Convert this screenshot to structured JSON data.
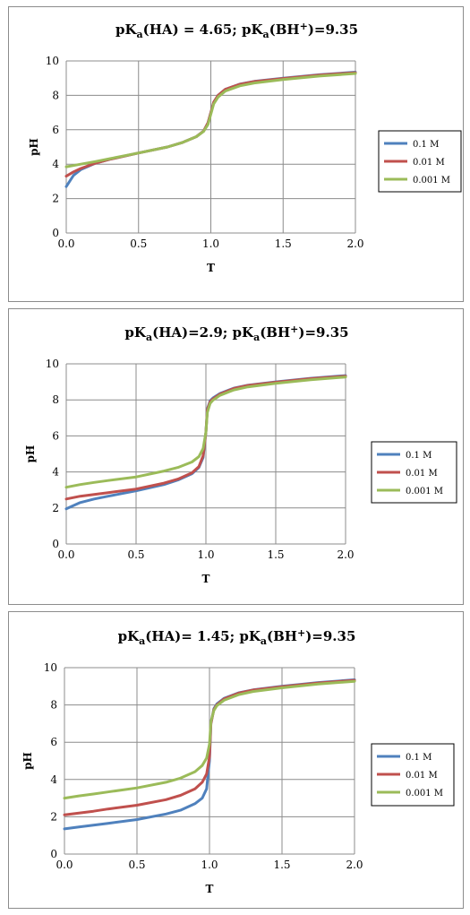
{
  "chart_data": [
    {
      "type": "line",
      "title": "pKa(HA) = 4.65; pKa(BH+)=9.35",
      "title_parts": {
        "a": "pK",
        "sub1": "a",
        "b": "(HA) = 4.65; pK",
        "sub2": "a",
        "c": "(BH",
        "sup": "+",
        "d": ")=9.35"
      },
      "xlabel": "T",
      "ylabel": "pH",
      "xlim": [
        0,
        2
      ],
      "ylim": [
        0,
        10
      ],
      "x_ticks": [
        "0.0",
        "0.5",
        "1.0",
        "1.5",
        "2.0"
      ],
      "y_ticks": [
        "0",
        "2",
        "4",
        "6",
        "8",
        "10"
      ],
      "grid": true,
      "legend_position": "right",
      "pka_ha": 4.65,
      "pka_bh": 9.35,
      "series": [
        {
          "name": "0.1 M",
          "conc": 0.1,
          "color": "#4f81bd",
          "points": [
            [
              0.0,
              2.7
            ],
            [
              0.05,
              3.35
            ],
            [
              0.1,
              3.68
            ],
            [
              0.2,
              4.05
            ],
            [
              0.3,
              4.28
            ],
            [
              0.5,
              4.65
            ],
            [
              0.7,
              5.0
            ],
            [
              0.8,
              5.25
            ],
            [
              0.9,
              5.6
            ],
            [
              0.95,
              5.92
            ],
            [
              0.98,
              6.4
            ],
            [
              1.0,
              7.0
            ],
            [
              1.02,
              7.6
            ],
            [
              1.05,
              8.0
            ],
            [
              1.1,
              8.35
            ],
            [
              1.2,
              8.65
            ],
            [
              1.3,
              8.81
            ],
            [
              1.5,
              9.0
            ],
            [
              1.75,
              9.2
            ],
            [
              2.0,
              9.35
            ]
          ]
        },
        {
          "name": "0.01 M",
          "conc": 0.01,
          "color": "#c0504d",
          "points": [
            [
              0.0,
              3.3
            ],
            [
              0.05,
              3.55
            ],
            [
              0.1,
              3.75
            ],
            [
              0.2,
              4.05
            ],
            [
              0.3,
              4.28
            ],
            [
              0.5,
              4.65
            ],
            [
              0.7,
              5.0
            ],
            [
              0.8,
              5.25
            ],
            [
              0.9,
              5.6
            ],
            [
              0.95,
              5.92
            ],
            [
              0.98,
              6.4
            ],
            [
              1.0,
              7.0
            ],
            [
              1.02,
              7.6
            ],
            [
              1.05,
              8.0
            ],
            [
              1.1,
              8.35
            ],
            [
              1.2,
              8.64
            ],
            [
              1.3,
              8.8
            ],
            [
              1.5,
              8.98
            ],
            [
              1.75,
              9.18
            ],
            [
              2.0,
              9.32
            ]
          ]
        },
        {
          "name": "0.001 M",
          "conc": 0.001,
          "color": "#9bbb59",
          "points": [
            [
              0.0,
              3.85
            ],
            [
              0.05,
              3.92
            ],
            [
              0.1,
              4.0
            ],
            [
              0.2,
              4.15
            ],
            [
              0.3,
              4.32
            ],
            [
              0.5,
              4.65
            ],
            [
              0.7,
              5.0
            ],
            [
              0.8,
              5.25
            ],
            [
              0.9,
              5.6
            ],
            [
              0.95,
              5.9
            ],
            [
              0.98,
              6.3
            ],
            [
              1.0,
              6.9
            ],
            [
              1.02,
              7.5
            ],
            [
              1.05,
              7.9
            ],
            [
              1.1,
              8.25
            ],
            [
              1.2,
              8.55
            ],
            [
              1.3,
              8.72
            ],
            [
              1.5,
              8.92
            ],
            [
              1.75,
              9.12
            ],
            [
              2.0,
              9.27
            ]
          ]
        }
      ]
    },
    {
      "type": "line",
      "title": "pKa(HA)=2.9; pKa(BH+)=9.35",
      "title_parts": {
        "a": "pK",
        "sub1": "a",
        "b": "(HA)=2.9; pK",
        "sub2": "a",
        "c": "(BH",
        "sup": "+",
        "d": ")=9.35"
      },
      "xlabel": "T",
      "ylabel": "pH",
      "xlim": [
        0,
        2
      ],
      "ylim": [
        0,
        10
      ],
      "x_ticks": [
        "0.0",
        "0.5",
        "1.0",
        "1.5",
        "2.0"
      ],
      "y_ticks": [
        "0",
        "2",
        "4",
        "6",
        "8",
        "10"
      ],
      "grid": true,
      "legend_position": "right",
      "pka_ha": 2.9,
      "pka_bh": 9.35,
      "series": [
        {
          "name": "0.1 M",
          "conc": 0.1,
          "color": "#4f81bd",
          "points": [
            [
              0.0,
              1.95
            ],
            [
              0.1,
              2.3
            ],
            [
              0.2,
              2.5
            ],
            [
              0.3,
              2.65
            ],
            [
              0.5,
              2.95
            ],
            [
              0.7,
              3.3
            ],
            [
              0.8,
              3.55
            ],
            [
              0.9,
              3.9
            ],
            [
              0.95,
              4.25
            ],
            [
              0.98,
              4.8
            ],
            [
              1.0,
              6.2
            ],
            [
              1.01,
              7.5
            ],
            [
              1.03,
              7.95
            ],
            [
              1.05,
              8.1
            ],
            [
              1.1,
              8.35
            ],
            [
              1.2,
              8.65
            ],
            [
              1.3,
              8.81
            ],
            [
              1.5,
              9.0
            ],
            [
              1.75,
              9.2
            ],
            [
              2.0,
              9.35
            ]
          ]
        },
        {
          "name": "0.01 M",
          "conc": 0.01,
          "color": "#c0504d",
          "points": [
            [
              0.0,
              2.5
            ],
            [
              0.1,
              2.65
            ],
            [
              0.2,
              2.75
            ],
            [
              0.3,
              2.85
            ],
            [
              0.5,
              3.05
            ],
            [
              0.7,
              3.38
            ],
            [
              0.8,
              3.6
            ],
            [
              0.9,
              3.95
            ],
            [
              0.95,
              4.3
            ],
            [
              0.98,
              4.9
            ],
            [
              1.0,
              6.2
            ],
            [
              1.01,
              7.45
            ],
            [
              1.03,
              7.9
            ],
            [
              1.05,
              8.05
            ],
            [
              1.1,
              8.32
            ],
            [
              1.2,
              8.63
            ],
            [
              1.3,
              8.8
            ],
            [
              1.5,
              8.98
            ],
            [
              1.75,
              9.18
            ],
            [
              2.0,
              9.32
            ]
          ]
        },
        {
          "name": "0.001 M",
          "conc": 0.001,
          "color": "#9bbb59",
          "points": [
            [
              0.0,
              3.15
            ],
            [
              0.1,
              3.3
            ],
            [
              0.2,
              3.42
            ],
            [
              0.3,
              3.52
            ],
            [
              0.5,
              3.72
            ],
            [
              0.7,
              4.05
            ],
            [
              0.8,
              4.25
            ],
            [
              0.9,
              4.55
            ],
            [
              0.95,
              4.85
            ],
            [
              0.98,
              5.3
            ],
            [
              1.0,
              6.2
            ],
            [
              1.01,
              7.3
            ],
            [
              1.03,
              7.8
            ],
            [
              1.05,
              7.98
            ],
            [
              1.1,
              8.25
            ],
            [
              1.2,
              8.55
            ],
            [
              1.3,
              8.72
            ],
            [
              1.5,
              8.92
            ],
            [
              1.75,
              9.12
            ],
            [
              2.0,
              9.27
            ]
          ]
        }
      ]
    },
    {
      "type": "line",
      "title": "pKa(HA)= 1.45; pKa(BH+)=9.35",
      "title_parts": {
        "a": "pK",
        "sub1": "a",
        "b": "(HA)= 1.45; pK",
        "sub2": "a",
        "c": "(BH",
        "sup": "+",
        "d": ")=9.35"
      },
      "xlabel": "T",
      "ylabel": "pH",
      "xlim": [
        0,
        2
      ],
      "ylim": [
        0,
        10
      ],
      "x_ticks": [
        "0.0",
        "0.5",
        "1.0",
        "1.5",
        "2.0"
      ],
      "y_ticks": [
        "0",
        "2",
        "4",
        "6",
        "8",
        "10"
      ],
      "grid": true,
      "legend_position": "right",
      "pka_ha": 1.45,
      "pka_bh": 9.35,
      "series": [
        {
          "name": "0.1 M",
          "conc": 0.1,
          "color": "#4f81bd",
          "points": [
            [
              0.0,
              1.35
            ],
            [
              0.1,
              1.45
            ],
            [
              0.2,
              1.55
            ],
            [
              0.3,
              1.65
            ],
            [
              0.5,
              1.85
            ],
            [
              0.7,
              2.15
            ],
            [
              0.8,
              2.35
            ],
            [
              0.9,
              2.7
            ],
            [
              0.95,
              3.0
            ],
            [
              0.98,
              3.5
            ],
            [
              1.0,
              5.0
            ],
            [
              1.01,
              7.0
            ],
            [
              1.03,
              7.8
            ],
            [
              1.05,
              8.05
            ],
            [
              1.1,
              8.35
            ],
            [
              1.2,
              8.65
            ],
            [
              1.3,
              8.81
            ],
            [
              1.5,
              9.0
            ],
            [
              1.75,
              9.2
            ],
            [
              2.0,
              9.35
            ]
          ]
        },
        {
          "name": "0.01 M",
          "conc": 0.01,
          "color": "#c0504d",
          "points": [
            [
              0.0,
              2.1
            ],
            [
              0.1,
              2.2
            ],
            [
              0.2,
              2.3
            ],
            [
              0.3,
              2.42
            ],
            [
              0.5,
              2.62
            ],
            [
              0.7,
              2.92
            ],
            [
              0.8,
              3.15
            ],
            [
              0.9,
              3.5
            ],
            [
              0.95,
              3.85
            ],
            [
              0.98,
              4.3
            ],
            [
              1.0,
              5.2
            ],
            [
              1.01,
              7.0
            ],
            [
              1.03,
              7.75
            ],
            [
              1.05,
              8.0
            ],
            [
              1.1,
              8.32
            ],
            [
              1.2,
              8.63
            ],
            [
              1.3,
              8.8
            ],
            [
              1.5,
              8.98
            ],
            [
              1.75,
              9.18
            ],
            [
              2.0,
              9.32
            ]
          ]
        },
        {
          "name": "0.001 M",
          "conc": 0.001,
          "color": "#9bbb59",
          "points": [
            [
              0.0,
              3.0
            ],
            [
              0.1,
              3.12
            ],
            [
              0.2,
              3.22
            ],
            [
              0.3,
              3.33
            ],
            [
              0.5,
              3.55
            ],
            [
              0.7,
              3.85
            ],
            [
              0.8,
              4.07
            ],
            [
              0.9,
              4.42
            ],
            [
              0.95,
              4.75
            ],
            [
              0.98,
              5.15
            ],
            [
              1.0,
              5.9
            ],
            [
              1.01,
              7.1
            ],
            [
              1.03,
              7.7
            ],
            [
              1.05,
              7.95
            ],
            [
              1.1,
              8.25
            ],
            [
              1.2,
              8.55
            ],
            [
              1.3,
              8.72
            ],
            [
              1.5,
              8.92
            ],
            [
              1.75,
              9.12
            ],
            [
              2.0,
              9.27
            ]
          ]
        }
      ]
    }
  ]
}
